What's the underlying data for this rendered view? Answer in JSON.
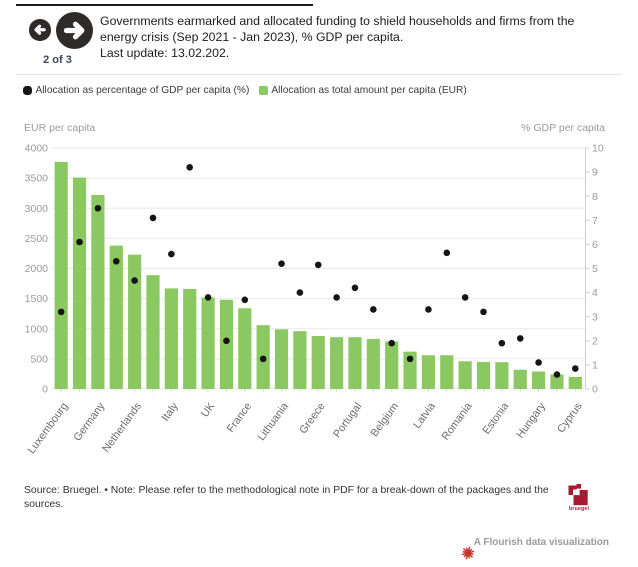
{
  "header": {
    "pager": "2 of 3",
    "title": "Governments earmarked and allocated funding to shield households and firms from the energy crisis (Sep 2021 - Jan 2023), % GDP per capita.",
    "last_update": "Last update: 13.02.202."
  },
  "legend": {
    "items": [
      {
        "label": "Allocation as percentage of GDP per capita (%)",
        "color": "#151515",
        "shape": "dot"
      },
      {
        "label": "Allocation as total amount per capita (EUR)",
        "color": "#8cc862",
        "shape": "square"
      }
    ]
  },
  "chart_data": {
    "type": "bar",
    "title": "Governments earmarked and allocated funding to shield households and firms from the energy crisis (Sep 2021 - Jan 2023), % GDP per capita.",
    "categories": [
      "Luxembourg",
      "",
      "Germany",
      "",
      "Netherlands",
      "",
      "Italy",
      "",
      "UK",
      "",
      "France",
      "",
      "Lithuania",
      "",
      "Greece",
      "",
      "Portugal",
      "",
      "Belgium",
      "",
      "Latvia",
      "",
      "Romania",
      "",
      "Estonia",
      "",
      "Hungary",
      "",
      "Cyprus"
    ],
    "series": [
      {
        "name": "Allocation as total amount per capita (EUR)",
        "type": "bar",
        "axis": "left",
        "color": "#8cc862",
        "values": [
          3770,
          3510,
          3220,
          2380,
          2230,
          1890,
          1670,
          1660,
          1520,
          1480,
          1340,
          1060,
          990,
          960,
          880,
          860,
          860,
          830,
          790,
          620,
          560,
          560,
          460,
          450,
          445,
          320,
          290,
          240,
          200
        ]
      },
      {
        "name": "Allocation as percentage of GDP per capita (%)",
        "type": "scatter",
        "axis": "right",
        "color": "#151515",
        "values": [
          3.2,
          6.1,
          7.5,
          5.3,
          4.5,
          7.1,
          5.6,
          9.2,
          3.8,
          2.0,
          3.7,
          1.25,
          5.2,
          4.0,
          5.15,
          3.8,
          4.2,
          3.3,
          1.9,
          1.25,
          3.3,
          5.65,
          3.8,
          3.2,
          1.9,
          2.1,
          1.1,
          0.6,
          0.85
        ]
      }
    ],
    "left_axis": {
      "title": "EUR per capita",
      "min": 0,
      "max": 4000,
      "step": 500
    },
    "right_axis": {
      "title": "% GDP per capita",
      "min": 0,
      "max": 10,
      "step": 1
    },
    "grid": true,
    "legend_position": "top"
  },
  "footer": {
    "source_note": "Source: Bruegel. • Note: Please refer to the methodological note in PDF for a break-down of the packages and the sources.",
    "logo_text": "bruegel",
    "attribution": "A Flourish data visualization"
  },
  "colors": {
    "bar": "#8cc862",
    "dot": "#151515",
    "grid": "#e8e8e8",
    "axis_line": "#cccccc",
    "tick_label": "#9a9a9a",
    "x_label": "#6b6b6b",
    "accent_red": "#a51c30",
    "flourish_red": "#c7342c"
  }
}
